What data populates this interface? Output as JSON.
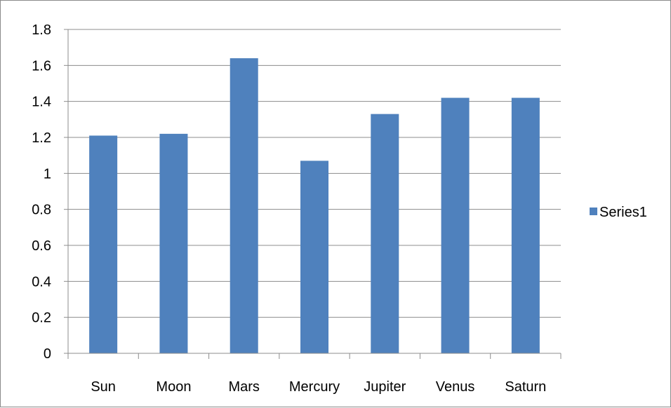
{
  "chart_data": {
    "type": "bar",
    "categories": [
      "Sun",
      "Moon",
      "Mars",
      "Mercury",
      "Jupiter",
      "Venus",
      "Saturn"
    ],
    "series": [
      {
        "name": "Series1",
        "values": [
          1.21,
          1.22,
          1.64,
          1.07,
          1.33,
          1.42,
          1.42
        ],
        "color": "#4F81BD"
      }
    ],
    "title": "",
    "xlabel": "",
    "ylabel": "",
    "ylim": [
      0,
      1.8
    ],
    "yticks": [
      "0",
      "0.2",
      "0.4",
      "0.6",
      "0.8",
      "1",
      "1.2",
      "1.4",
      "1.6",
      "1.8"
    ],
    "grid": true,
    "gridline_color": "#8c8c8c",
    "legend_position": "right"
  }
}
